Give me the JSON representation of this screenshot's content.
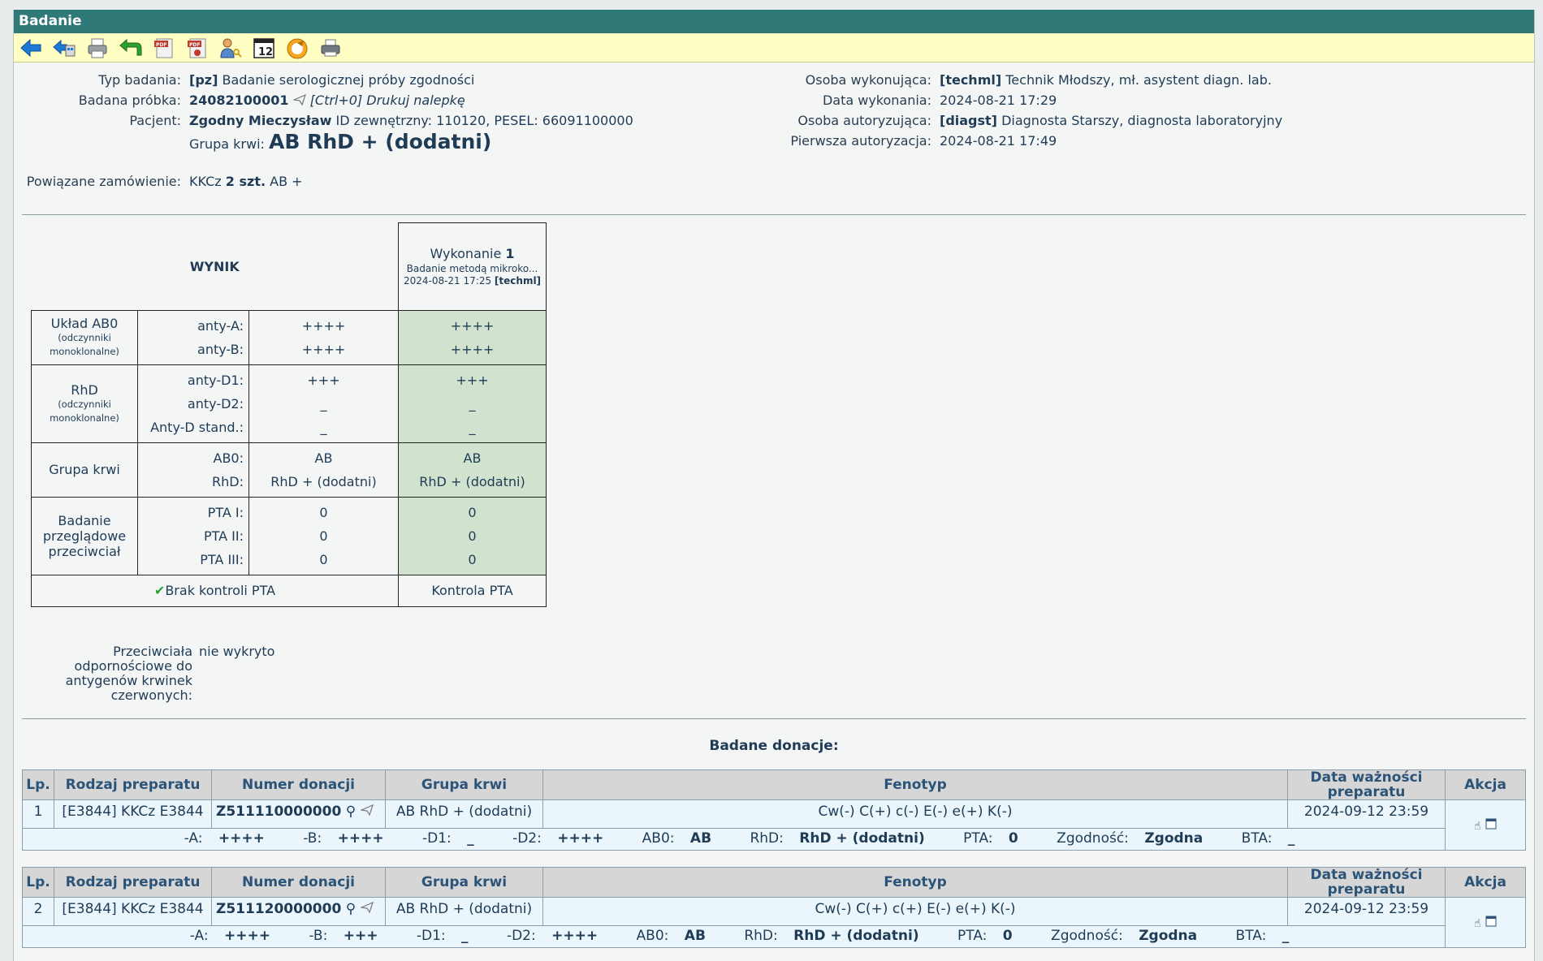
{
  "window": {
    "title": "Badanie"
  },
  "toolbar": {
    "icons": [
      "back-arrow-icon",
      "back-home-icon",
      "printer-icon",
      "undo-green-arrow-icon",
      "pdf-icon",
      "pdf-print-icon",
      "user-key-icon",
      "calendar-icon",
      "refresh-icon",
      "label-printer-icon"
    ],
    "calendar_day": "12"
  },
  "details": {
    "type_label": "Typ badania:",
    "type_code": "[pz]",
    "type_name": "Badanie serologicznej próby zgodności",
    "sample_label": "Badana próbka:",
    "sample_id": "24082100001",
    "sample_print": "[Ctrl+0] Drukuj nalepkę",
    "patient_label": "Pacjent:",
    "patient_name": "Zgodny Mieczysław",
    "patient_ids": "ID zewnętrzny: 110120, PESEL: 66091100000",
    "blood_label": "Grupa krwi:",
    "blood_value": "AB RhD + (dodatni)",
    "order_label": "Powiązane zamówienie:",
    "order_prefix": "KKCz",
    "order_qty": "2 szt.",
    "order_group": "AB +",
    "performer_label": "Osoba wykonująca:",
    "performer_code": "[techml]",
    "performer_name": "Technik Młodszy, mł. asystent diagn. lab.",
    "date_label": "Data wykonania:",
    "date_value": "2024-08-21 17:29",
    "auth_label": "Osoba autoryzująca:",
    "auth_code": "[diagst]",
    "auth_name": "Diagnosta Starszy, diagnosta laboratoryjny",
    "first_auth_label": "Pierwsza autoryzacja:",
    "first_auth_value": "2024-08-21 17:49"
  },
  "result": {
    "header": "WYNIK",
    "exec_label": "Wykonanie",
    "exec_num": "1",
    "exec_method": "Badanie metodą mikroko...",
    "exec_date": "2024-08-21 17:25",
    "exec_user": "[techml]",
    "groups": [
      {
        "name": "Układ AB0",
        "note": "(odczynniki monoklonalne)",
        "rows": [
          {
            "label": "anty-A:",
            "v1": "++++",
            "v2": "++++"
          },
          {
            "label": "anty-B:",
            "v1": "++++",
            "v2": "++++"
          }
        ]
      },
      {
        "name": "RhD",
        "note": "(odczynniki monoklonalne)",
        "rows": [
          {
            "label": "anty-D1:",
            "v1": "+++",
            "v2": "+++"
          },
          {
            "label": "anty-D2:",
            "v1": "_",
            "v2": "_"
          },
          {
            "label": "Anty-D stand.:",
            "v1": "_",
            "v2": "_"
          }
        ]
      },
      {
        "name": "Grupa krwi",
        "note": "",
        "rows": [
          {
            "label": "AB0:",
            "v1": "AB",
            "v2": "AB"
          },
          {
            "label": "RhD:",
            "v1": "RhD + (dodatni)",
            "v2": "RhD + (dodatni)"
          }
        ]
      },
      {
        "name": "Badanie przeglądowe przeciwciał",
        "note": "",
        "rows": [
          {
            "label": "PTA I:",
            "v1": "0",
            "v2": "0"
          },
          {
            "label": "PTA II:",
            "v1": "0",
            "v2": "0"
          },
          {
            "label": "PTA III:",
            "v1": "0",
            "v2": "0"
          }
        ]
      }
    ],
    "footer_left": "Brak kontroli PTA",
    "footer_right": "Kontrola PTA"
  },
  "antibodies": {
    "label": "Przeciwciała odpornościowe do antygenów krwinek czerwonych:",
    "value": "nie wykryto"
  },
  "donations": {
    "title": "Badane donacje:",
    "headers": [
      "Lp.",
      "Rodzaj preparatu",
      "Numer donacji",
      "Grupa krwi",
      "Fenotyp",
      "Data ważności preparatu",
      "Akcja"
    ],
    "rows": [
      {
        "lp": "1",
        "type": "[E3844] KKCz E3844",
        "number": "Z511110000000",
        "group": "AB RhD + (dodatni)",
        "phenotype": "Cw(-) C(+) c(-) E(-) e(+) K(-)",
        "expiry": "2024-09-12 23:59",
        "s": {
          "a_l": "-A:",
          "a": "++++",
          "b_l": "-B:",
          "b": "++++",
          "d1_l": "-D1:",
          "d1": "_",
          "d2_l": "-D2:",
          "d2": "++++",
          "ab0_l": "AB0:",
          "ab0": "AB",
          "rhd_l": "RhD:",
          "rhd": "RhD + (dodatni)",
          "pta_l": "PTA:",
          "pta": "0",
          "zg_l": "Zgodność:",
          "zg": "Zgodna",
          "bta_l": "BTA:",
          "bta": "_"
        }
      },
      {
        "lp": "2",
        "type": "[E3844] KKCz E3844",
        "number": "Z511120000000",
        "group": "AB RhD + (dodatni)",
        "phenotype": "Cw(-) C(+) c(+) E(-) e(+) K(-)",
        "expiry": "2024-09-12 23:59",
        "s": {
          "a_l": "-A:",
          "a": "++++",
          "b_l": "-B:",
          "b": "+++",
          "d1_l": "-D1:",
          "d1": "_",
          "d2_l": "-D2:",
          "d2": "++++",
          "ab0_l": "AB0:",
          "ab0": "AB",
          "rhd_l": "RhD:",
          "rhd": "RhD + (dodatni)",
          "pta_l": "PTA:",
          "pta": "0",
          "zg_l": "Zgodność:",
          "zg": "Zgodna",
          "bta_l": "BTA:",
          "bta": "_"
        }
      }
    ]
  }
}
